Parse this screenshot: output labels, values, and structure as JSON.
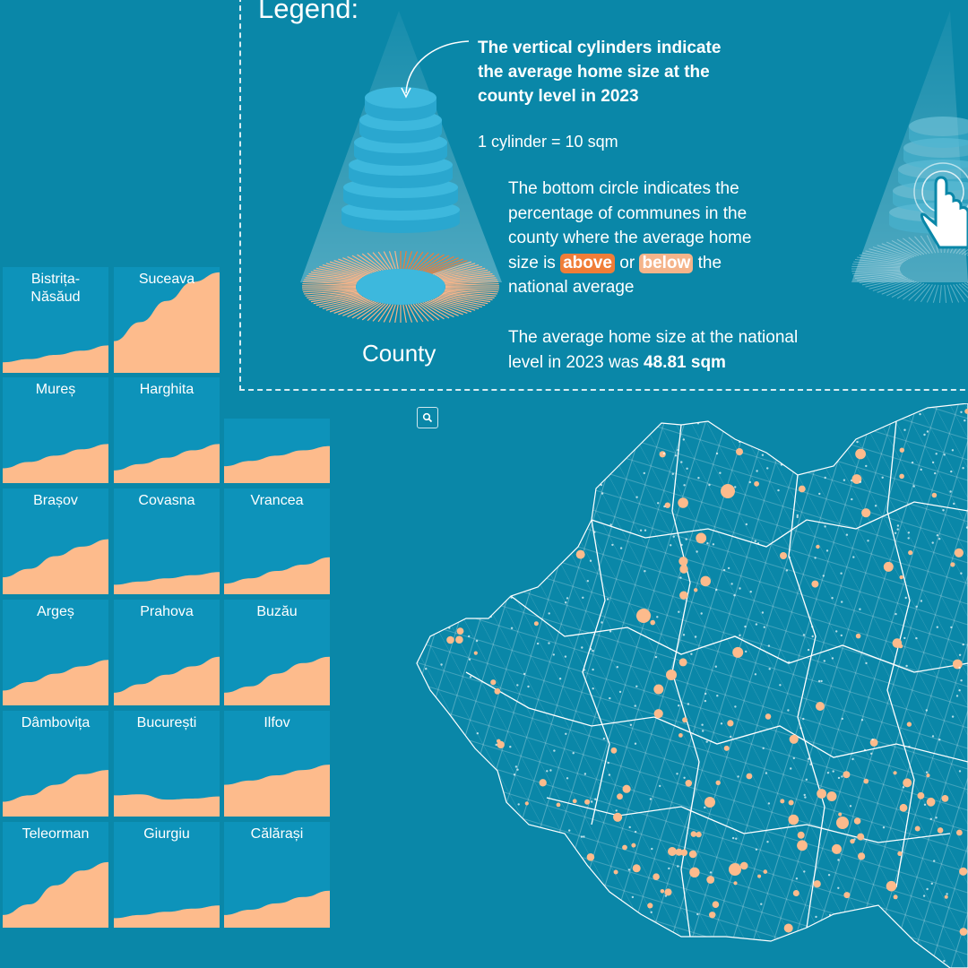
{
  "legend": {
    "title": "Legend:",
    "heading": "The vertical cylinders indicate the average home size at the county level in 2023",
    "scale": "1 cylinder = 10 sqm",
    "circle_text_1": "The bottom circle indicates the percentage of communes in the county where the average home size is",
    "above": "above",
    "or": "or",
    "below": "below",
    "circle_text_2": "the national average",
    "national_text": "The average home size at the national level in 2023 was",
    "national_value": "48.81 sqm",
    "county_label": "County",
    "colors": {
      "above": "#f07d38",
      "below": "#f5b48a",
      "cylinder": "#3db8dd"
    }
  },
  "search": {
    "icon": "search-icon"
  },
  "chart_data": {
    "type": "area",
    "description_values_are_relative_trend": true,
    "panels": [
      {
        "name": "Bistrița-Năsăud",
        "values": [
          0.1,
          0.13,
          0.17,
          0.21,
          0.26
        ]
      },
      {
        "name": "Suceava",
        "values": [
          0.3,
          0.48,
          0.68,
          0.86,
          0.95
        ]
      },
      {
        "name": "Mureș",
        "values": [
          0.14,
          0.2,
          0.26,
          0.32,
          0.37
        ]
      },
      {
        "name": "Harghita",
        "values": [
          0.12,
          0.18,
          0.24,
          0.31,
          0.37
        ]
      },
      {
        "name": "",
        "values": [
          0.16,
          0.21,
          0.26,
          0.31,
          0.35
        ]
      },
      {
        "name": "Brașov",
        "values": [
          0.16,
          0.24,
          0.36,
          0.45,
          0.52
        ]
      },
      {
        "name": "Covasna",
        "values": [
          0.09,
          0.12,
          0.15,
          0.18,
          0.21
        ]
      },
      {
        "name": "Vrancea",
        "values": [
          0.1,
          0.15,
          0.22,
          0.28,
          0.35
        ]
      },
      {
        "name": "Argeș",
        "values": [
          0.14,
          0.22,
          0.3,
          0.37,
          0.43
        ]
      },
      {
        "name": "Prahova",
        "values": [
          0.12,
          0.2,
          0.29,
          0.37,
          0.46
        ]
      },
      {
        "name": "Buzău",
        "values": [
          0.12,
          0.18,
          0.3,
          0.4,
          0.46
        ]
      },
      {
        "name": "Dâmbovița",
        "values": [
          0.14,
          0.2,
          0.3,
          0.4,
          0.44
        ]
      },
      {
        "name": "București",
        "values": [
          0.2,
          0.21,
          0.16,
          0.17,
          0.19
        ]
      },
      {
        "name": "Ilfov",
        "values": [
          0.3,
          0.34,
          0.39,
          0.44,
          0.49
        ]
      },
      {
        "name": "Teleorman",
        "values": [
          0.12,
          0.22,
          0.4,
          0.54,
          0.62
        ]
      },
      {
        "name": "Giurgiu",
        "values": [
          0.09,
          0.12,
          0.15,
          0.18,
          0.21
        ]
      },
      {
        "name": "Călărași",
        "values": [
          0.12,
          0.17,
          0.23,
          0.29,
          0.35
        ]
      }
    ]
  }
}
